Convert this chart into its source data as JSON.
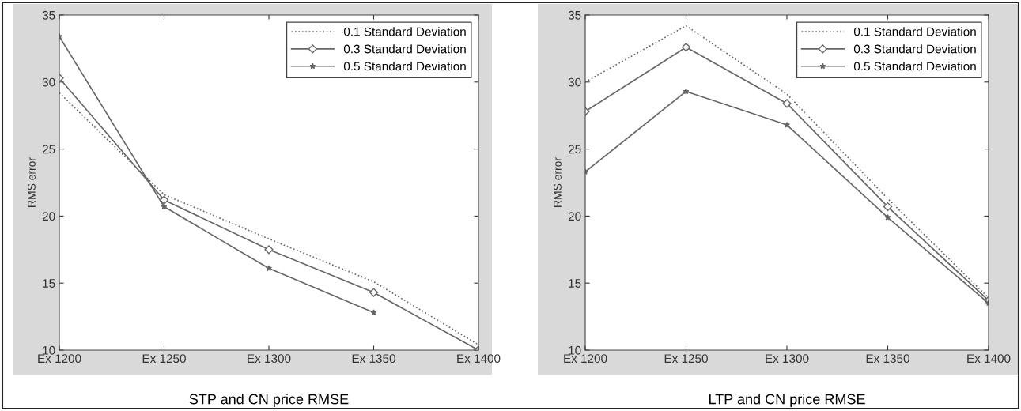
{
  "chart_data": [
    {
      "type": "line",
      "title": "STP and CN price RMSE",
      "ylabel": "RMS error",
      "categories": [
        "Ex 1200",
        "Ex 1250",
        "Ex 1300",
        "Ex 1350",
        "Ex 1400"
      ],
      "ylim": [
        10,
        35
      ],
      "yticks": [
        10,
        15,
        20,
        25,
        30,
        35
      ],
      "grid": false,
      "legend": "top right",
      "series": [
        {
          "name": "0.1 Standard Deviation",
          "color": "#666666",
          "line_style": "dotted",
          "marker": "none",
          "values": [
            29.2,
            21.6,
            18.3,
            15.1,
            10.4
          ]
        },
        {
          "name": "0.3 Standard Deviation",
          "color": "#666666",
          "line_style": "solid",
          "marker": "diamond",
          "values": [
            30.3,
            21.2,
            17.5,
            14.3,
            10
          ]
        },
        {
          "name": "0.5 Standard Deviation",
          "color": "#666666",
          "line_style": "solid",
          "marker": "star",
          "values": [
            33.4,
            20.7,
            16.1,
            12.8,
            null
          ]
        }
      ]
    },
    {
      "type": "line",
      "title": "LTP and CN price RMSE",
      "ylabel": "RMS error",
      "categories": [
        "Ex 1200",
        "Ex 1250",
        "Ex 1300",
        "Ex 1350",
        "Ex 1400"
      ],
      "ylim": [
        10,
        35
      ],
      "yticks": [
        10,
        15,
        20,
        25,
        30,
        35
      ],
      "grid": false,
      "legend": "top right",
      "series": [
        {
          "name": "0.1 Standard Deviation",
          "color": "#666666",
          "line_style": "dotted",
          "marker": "none",
          "values": [
            30.0,
            34.2,
            29.1,
            21.3,
            13.9
          ]
        },
        {
          "name": "0.3 Standard Deviation",
          "color": "#666666",
          "line_style": "solid",
          "marker": "diamond",
          "values": [
            27.8,
            32.6,
            28.4,
            20.7,
            13.7
          ]
        },
        {
          "name": "0.5 Standard Deviation",
          "color": "#666666",
          "line_style": "solid",
          "marker": "star",
          "values": [
            23.3,
            29.3,
            26.8,
            19.9,
            13.5
          ]
        }
      ]
    }
  ]
}
